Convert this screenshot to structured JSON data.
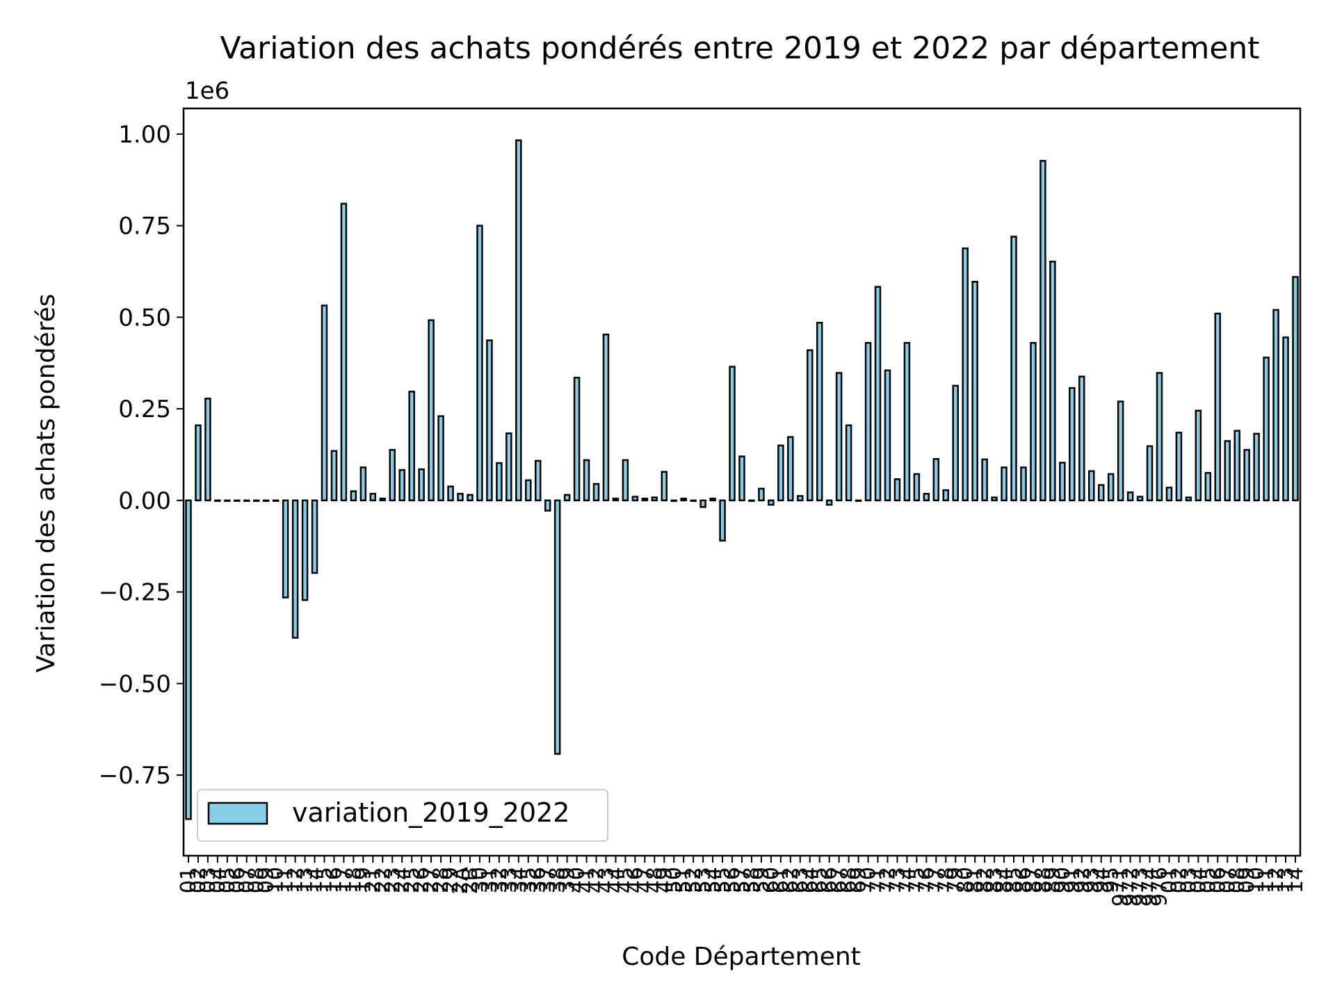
{
  "chart_data": {
    "type": "bar",
    "title": "Variation des achats pondérés entre 2019 et 2022 par département",
    "xlabel": "Code Département",
    "ylabel": "Variation des achats pondérés",
    "offset_label": "1e6",
    "multiplier": 1000000,
    "ylim": [
      -0.97,
      1.07
    ],
    "yticks": [
      -0.75,
      -0.5,
      -0.25,
      0.0,
      0.25,
      0.5,
      0.75,
      1.0
    ],
    "ytick_labels": [
      "−0.75",
      "−0.50",
      "−0.25",
      "0.00",
      "0.25",
      "0.50",
      "0.75",
      "1.00"
    ],
    "grid": false,
    "legend_position": "lower-left",
    "bar_color": "#87ceeb",
    "edge_color": "#000000",
    "series": [
      {
        "name": "variation_2019_2022",
        "values": [
          -0.87,
          0.205,
          0.278,
          0,
          0,
          0,
          0,
          0,
          0,
          0,
          -0.265,
          -0.375,
          -0.272,
          -0.198,
          0.532,
          0.135,
          0.81,
          0.025,
          0.09,
          0.018,
          0.005,
          0.138,
          0.083,
          0.297,
          0.085,
          0.492,
          0.23,
          0.038,
          0.018,
          0.015,
          0.75,
          0.437,
          0.102,
          0.183,
          0.983,
          0.055,
          0.108,
          -0.028,
          -0.692,
          0.015,
          0.335,
          0.11,
          0.045,
          0.453,
          0.005,
          0.11,
          0.01,
          0.005,
          0.008,
          0.078,
          0,
          0.005,
          0,
          -0.018,
          0.005,
          -0.11,
          0.365,
          0.12,
          0,
          0.032,
          -0.012,
          0.15,
          0.173,
          0.012,
          0.41,
          0.485,
          -0.012,
          0.348,
          0.205,
          0,
          0.43,
          0.583,
          0.355,
          0.058,
          0.43,
          0.072,
          0.018,
          0.113,
          0.028,
          0.313,
          0.688,
          0.597,
          0.112,
          0.008,
          0.09,
          0.72,
          0.09,
          0.43,
          0.927,
          0.652,
          0.103,
          0.307,
          0.338,
          0.08,
          0.042,
          0.072,
          0.27,
          0.022,
          0.01,
          0.148,
          0.348,
          0.035,
          0.185,
          0.008,
          0.245,
          0.075,
          0.51,
          0.162,
          0.19,
          0.138,
          0.182,
          0.39,
          0.52,
          0.445,
          0.61
        ]
      }
    ],
    "categories": [
      "01",
      "02",
      "03",
      "04",
      "05",
      "06",
      "07",
      "08",
      "09",
      "10",
      "11",
      "12",
      "13",
      "14",
      "15",
      "16",
      "17",
      "18",
      "19",
      "21",
      "22",
      "23",
      "24",
      "25",
      "26",
      "27",
      "28",
      "29",
      "2A",
      "2B",
      "30",
      "31",
      "32",
      "33",
      "34",
      "35",
      "36",
      "37",
      "38",
      "39",
      "40",
      "41",
      "42",
      "43",
      "44",
      "45",
      "46",
      "47",
      "48",
      "49",
      "50",
      "51",
      "52",
      "53",
      "54",
      "55",
      "56",
      "57",
      "58",
      "59",
      "60",
      "61",
      "62",
      "63",
      "64",
      "65",
      "66",
      "67",
      "68",
      "69",
      "70",
      "71",
      "72",
      "73",
      "74",
      "75",
      "76",
      "77",
      "78",
      "79",
      "80",
      "81",
      "82",
      "83",
      "84",
      "85",
      "86",
      "87",
      "88",
      "89",
      "90",
      "91",
      "92",
      "93",
      "94",
      "95",
      "971",
      "972",
      "973",
      "974",
      "976",
      "01",
      "02",
      "03",
      "04",
      "05",
      "06",
      "07",
      "08",
      "09",
      "10",
      "11",
      "12",
      "13",
      "14"
    ]
  }
}
